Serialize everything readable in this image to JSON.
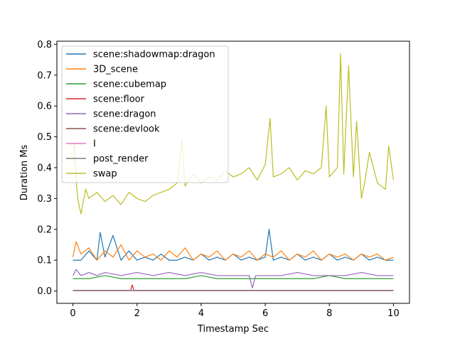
{
  "chart_data": {
    "type": "line",
    "xlabel": "Timestamp Sec",
    "ylabel": "Duration Ms",
    "xlim": [
      -0.5,
      10.5
    ],
    "ylim": [
      -0.04,
      0.81
    ],
    "xticks": [
      0,
      2,
      4,
      6,
      8,
      10
    ],
    "xtick_labels": [
      "0",
      "2",
      "4",
      "6",
      "8",
      "10"
    ],
    "yticks": [
      0.0,
      0.1,
      0.2,
      0.3,
      0.4,
      0.5,
      0.6,
      0.7,
      0.8
    ],
    "ytick_labels": [
      "0.0",
      "0.1",
      "0.2",
      "0.3",
      "0.4",
      "0.5",
      "0.6",
      "0.7",
      "0.8"
    ],
    "grid": false,
    "legend_position": "upper-left",
    "series": [
      {
        "name": "scene:shadowmap:dragon",
        "color": "#1f77b4",
        "x": [
          0,
          0.25,
          0.5,
          0.75,
          0.85,
          1.0,
          1.25,
          1.5,
          1.75,
          2.0,
          2.25,
          2.5,
          2.75,
          3.0,
          3.25,
          3.5,
          3.75,
          4.0,
          4.25,
          4.5,
          4.75,
          5.0,
          5.25,
          5.5,
          5.75,
          6.0,
          6.12,
          6.25,
          6.5,
          6.75,
          7.0,
          7.25,
          7.5,
          7.75,
          8.0,
          8.25,
          8.5,
          8.75,
          9.0,
          9.25,
          9.5,
          9.75,
          10.0
        ],
        "y": [
          0.1,
          0.1,
          0.13,
          0.1,
          0.19,
          0.11,
          0.18,
          0.1,
          0.13,
          0.1,
          0.11,
          0.1,
          0.12,
          0.1,
          0.1,
          0.11,
          0.1,
          0.12,
          0.1,
          0.11,
          0.1,
          0.12,
          0.1,
          0.11,
          0.1,
          0.11,
          0.2,
          0.1,
          0.11,
          0.1,
          0.12,
          0.1,
          0.11,
          0.1,
          0.12,
          0.1,
          0.11,
          0.1,
          0.12,
          0.1,
          0.11,
          0.1,
          0.1
        ]
      },
      {
        "name": "3D_scene",
        "color": "#ff7f0e",
        "x": [
          0,
          0.1,
          0.25,
          0.5,
          0.75,
          1.0,
          1.25,
          1.5,
          1.75,
          2.0,
          2.25,
          2.5,
          2.75,
          3.0,
          3.25,
          3.5,
          3.75,
          4.0,
          4.25,
          4.5,
          4.75,
          5.0,
          5.25,
          5.5,
          5.75,
          6.0,
          6.25,
          6.5,
          6.75,
          7.0,
          7.25,
          7.5,
          7.75,
          8.0,
          8.25,
          8.5,
          8.75,
          9.0,
          9.25,
          9.5,
          9.75,
          10.0
        ],
        "y": [
          0.11,
          0.16,
          0.12,
          0.14,
          0.1,
          0.13,
          0.11,
          0.15,
          0.1,
          0.13,
          0.11,
          0.12,
          0.1,
          0.13,
          0.11,
          0.14,
          0.1,
          0.12,
          0.11,
          0.13,
          0.1,
          0.12,
          0.11,
          0.13,
          0.1,
          0.12,
          0.11,
          0.13,
          0.1,
          0.12,
          0.11,
          0.13,
          0.1,
          0.12,
          0.11,
          0.12,
          0.1,
          0.12,
          0.11,
          0.12,
          0.1,
          0.11
        ]
      },
      {
        "name": "scene:cubemap",
        "color": "#2ca02c",
        "x": [
          0,
          0.5,
          1.0,
          1.5,
          2.0,
          2.5,
          3.0,
          3.5,
          4.0,
          4.5,
          5.0,
          5.5,
          6.0,
          6.5,
          7.0,
          7.5,
          8.0,
          8.5,
          9.0,
          9.5,
          10.0
        ],
        "y": [
          0.04,
          0.04,
          0.05,
          0.04,
          0.04,
          0.04,
          0.04,
          0.04,
          0.05,
          0.04,
          0.04,
          0.04,
          0.04,
          0.04,
          0.04,
          0.04,
          0.05,
          0.04,
          0.04,
          0.04,
          0.04
        ]
      },
      {
        "name": "scene:floor",
        "color": "#d62728",
        "x": [
          0,
          1.0,
          1.8,
          1.85,
          1.9,
          2.0,
          3.0,
          4.0,
          5.0,
          6.0,
          7.0,
          8.0,
          9.0,
          10.0
        ],
        "y": [
          0.002,
          0.002,
          0.002,
          0.02,
          0.002,
          0.002,
          0.002,
          0.002,
          0.002,
          0.002,
          0.002,
          0.002,
          0.002,
          0.002
        ]
      },
      {
        "name": "scene:dragon",
        "color": "#9467bd",
        "x": [
          0,
          0.1,
          0.25,
          0.5,
          0.75,
          1.0,
          1.5,
          2.0,
          2.5,
          3.0,
          3.5,
          4.0,
          4.5,
          5.0,
          5.5,
          5.6,
          5.7,
          6.0,
          6.5,
          7.0,
          7.5,
          8.0,
          8.5,
          9.0,
          9.5,
          10.0
        ],
        "y": [
          0.05,
          0.07,
          0.05,
          0.06,
          0.05,
          0.06,
          0.05,
          0.06,
          0.05,
          0.06,
          0.05,
          0.06,
          0.05,
          0.05,
          0.05,
          0.01,
          0.05,
          0.05,
          0.05,
          0.06,
          0.05,
          0.05,
          0.05,
          0.06,
          0.05,
          0.05
        ]
      },
      {
        "name": "scene:devlook",
        "color": "#8c564b",
        "x": [
          0,
          10.0
        ],
        "y": [
          0.001,
          0.001
        ]
      },
      {
        "name": "I",
        "color": "#e377c2",
        "x": [
          0,
          10.0
        ],
        "y": [
          0.001,
          0.001
        ]
      },
      {
        "name": "post_render",
        "color": "#7f7f7f",
        "x": [
          0,
          10.0
        ],
        "y": [
          0.002,
          0.002
        ]
      },
      {
        "name": "swap",
        "color": "#bcbd22",
        "x": [
          0,
          0.05,
          0.1,
          0.15,
          0.25,
          0.4,
          0.5,
          0.75,
          1.0,
          1.25,
          1.5,
          1.75,
          2.0,
          2.25,
          2.5,
          2.75,
          3.0,
          3.25,
          3.4,
          3.5,
          3.75,
          4.0,
          4.25,
          4.5,
          4.75,
          5.0,
          5.25,
          5.5,
          5.75,
          6.0,
          6.15,
          6.25,
          6.5,
          6.75,
          7.0,
          7.25,
          7.5,
          7.75,
          7.9,
          8.0,
          8.25,
          8.35,
          8.45,
          8.6,
          8.75,
          8.85,
          9.0,
          9.1,
          9.25,
          9.5,
          9.75,
          9.85,
          10.0
        ],
        "y": [
          0.42,
          0.48,
          0.36,
          0.3,
          0.25,
          0.33,
          0.3,
          0.32,
          0.29,
          0.31,
          0.28,
          0.32,
          0.3,
          0.29,
          0.31,
          0.32,
          0.33,
          0.35,
          0.49,
          0.34,
          0.38,
          0.35,
          0.37,
          0.36,
          0.39,
          0.37,
          0.38,
          0.4,
          0.36,
          0.41,
          0.56,
          0.37,
          0.38,
          0.4,
          0.36,
          0.39,
          0.38,
          0.4,
          0.6,
          0.37,
          0.4,
          0.77,
          0.38,
          0.73,
          0.37,
          0.55,
          0.3,
          0.35,
          0.45,
          0.35,
          0.33,
          0.47,
          0.36
        ]
      }
    ]
  }
}
